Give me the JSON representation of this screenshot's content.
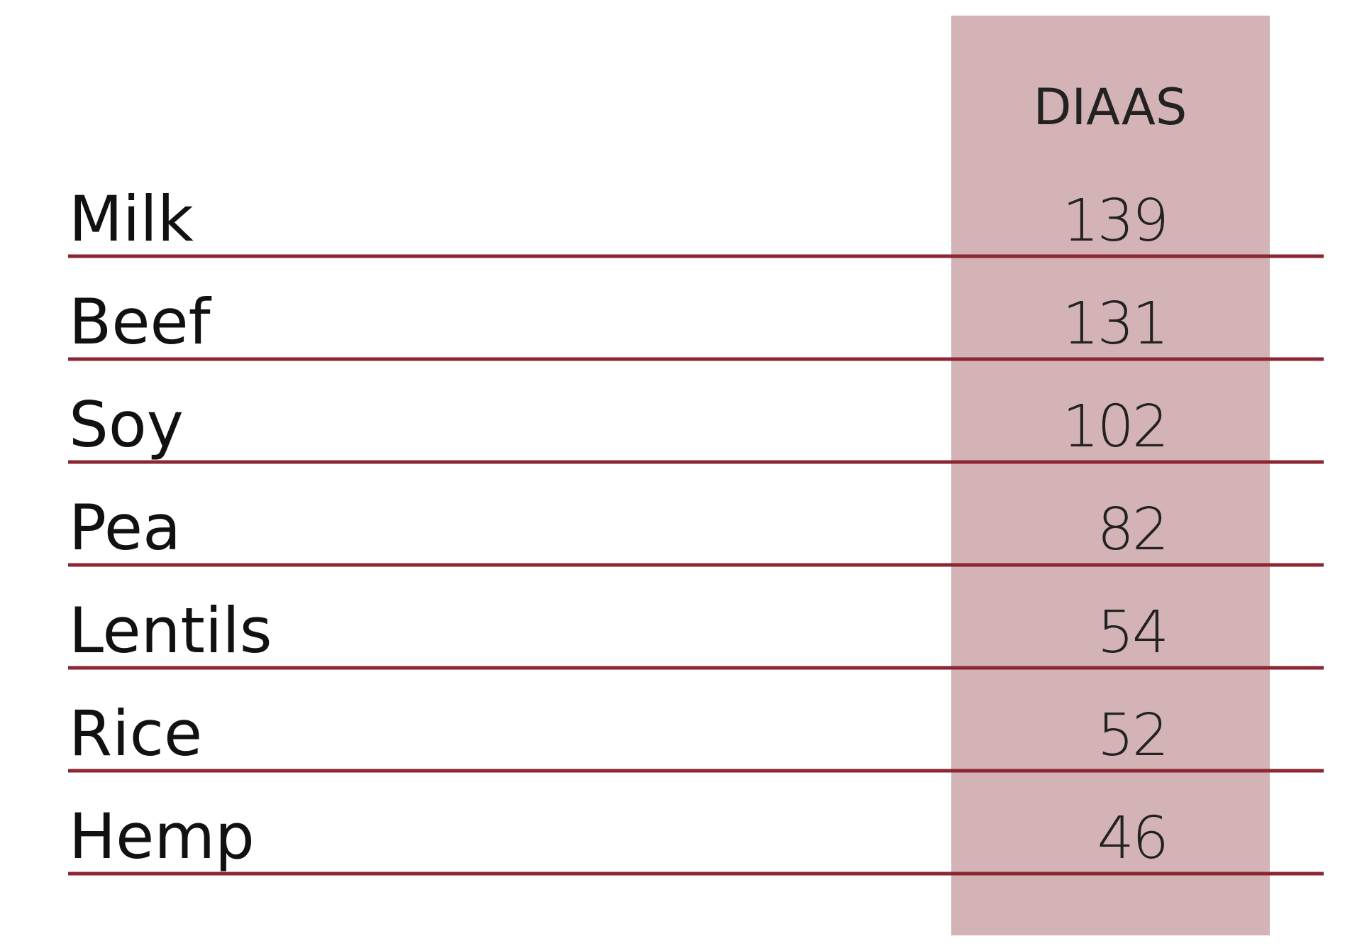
{
  "table": {
    "header": "DIAAS",
    "rows": [
      [
        "Milk",
        139
      ],
      [
        "Beef",
        131
      ],
      [
        "Soy",
        102
      ],
      [
        "Pea",
        82
      ],
      [
        "Lentils",
        54
      ],
      [
        "Rice",
        52
      ],
      [
        "Hemp",
        46
      ]
    ]
  }
}
